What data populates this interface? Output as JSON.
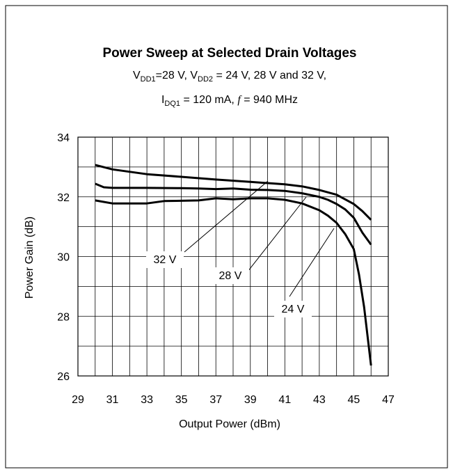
{
  "chart_data": {
    "type": "line",
    "title": "Power Sweep at Selected Drain Voltages",
    "subtitle_lines": [
      [
        {
          "text": "V",
          "style": "normal"
        },
        {
          "text": "DD1",
          "style": "sub"
        },
        {
          "text": "=28 V, V",
          "style": "normal"
        },
        {
          "text": "DD2",
          "style": "sub"
        },
        {
          "text": " = 24 V, 28 V and 32 V,",
          "style": "normal"
        }
      ],
      [
        {
          "text": "I",
          "style": "normal"
        },
        {
          "text": "DQ1",
          "style": "sub"
        },
        {
          "text": " = 120 mA, ",
          "style": "normal"
        },
        {
          "text": "f",
          "style": "italic"
        },
        {
          "text": " = 940 MHz",
          "style": "normal"
        }
      ]
    ],
    "x_label": "Output Power (dBm)",
    "y_label": "Power Gain (dB)",
    "xlim": [
      29,
      47
    ],
    "ylim": [
      26,
      34
    ],
    "xticks": [
      29,
      31,
      33,
      35,
      37,
      39,
      41,
      43,
      45,
      47
    ],
    "yticks": [
      26,
      28,
      30,
      32,
      34
    ],
    "x_grid": [
      29,
      30,
      31,
      32,
      33,
      34,
      35,
      36,
      37,
      38,
      39,
      40,
      41,
      42,
      43,
      44,
      45,
      46,
      47
    ],
    "y_grid": [
      26,
      27,
      28,
      29,
      30,
      31,
      32,
      33,
      34
    ],
    "grid": true,
    "series": [
      {
        "name": "32 V",
        "color": "#000000",
        "x": [
          30,
          31,
          33,
          35,
          37,
          39,
          41,
          42,
          43,
          44,
          45,
          45.5,
          46
        ],
        "values": [
          33.07,
          32.92,
          32.76,
          32.67,
          32.58,
          32.5,
          32.42,
          32.35,
          32.23,
          32.07,
          31.76,
          31.52,
          31.23
        ]
      },
      {
        "name": "28 V",
        "color": "#000000",
        "x": [
          30,
          30.5,
          31,
          33,
          35,
          36,
          37,
          38,
          39,
          40,
          41,
          42,
          43,
          43.5,
          44,
          44.5,
          45,
          45.5,
          46
        ],
        "values": [
          32.44,
          32.32,
          32.3,
          32.3,
          32.29,
          32.28,
          32.26,
          32.28,
          32.24,
          32.23,
          32.2,
          32.12,
          32.0,
          31.9,
          31.76,
          31.58,
          31.3,
          30.8,
          30.4
        ]
      },
      {
        "name": "24 V",
        "color": "#000000",
        "x": [
          30,
          31,
          33,
          34,
          36,
          37,
          38,
          39,
          40,
          41,
          42,
          43,
          43.5,
          44,
          44.5,
          45,
          45.3,
          45.6,
          46
        ],
        "values": [
          31.88,
          31.78,
          31.78,
          31.86,
          31.88,
          31.95,
          31.92,
          31.95,
          31.95,
          31.9,
          31.78,
          31.55,
          31.37,
          31.13,
          30.75,
          30.25,
          29.4,
          28.3,
          26.35
        ]
      }
    ]
  }
}
